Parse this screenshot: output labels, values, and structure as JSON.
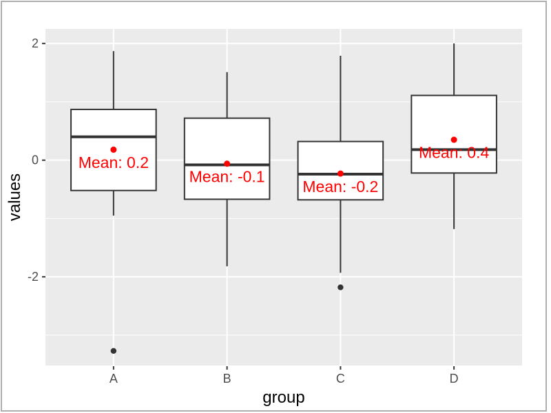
{
  "figure": {
    "kind": "ggplot2-style boxplot screenshot",
    "colors": {
      "page_background": "#ffffff",
      "panel_background": "#ebebeb",
      "gridline": "#ffffff",
      "box_fill": "#ffffff",
      "box_outline": "#333333",
      "median_line": "#333333",
      "outlier_point": "#333333",
      "mean_point": "#ff0000",
      "mean_label_text": "#ff0000",
      "tick_label_text": "#4d4d4d",
      "axis_title_text": "#000000",
      "screenshot_frame": "#aeaeae"
    }
  },
  "chart_data": {
    "type": "boxplot",
    "title": "",
    "xlabel": "group",
    "ylabel": "values",
    "x_axis": {
      "title": "group",
      "categories": [
        "A",
        "B",
        "C",
        "D"
      ]
    },
    "y_axis": {
      "title": "values",
      "range": [
        -3.52,
        2.25
      ],
      "ticks": [
        {
          "value": 2,
          "label": "2"
        },
        {
          "value": 0,
          "label": "0"
        },
        {
          "value": -2,
          "label": "-2"
        }
      ],
      "minor_gridlines": [
        1,
        -1,
        -3
      ],
      "grid": "major-and-minor"
    },
    "legend": "none",
    "mean_label_offset": -0.22,
    "series": [
      {
        "group": "A",
        "whisker_low": -0.95,
        "q1": -0.52,
        "median": 0.4,
        "q3": 0.87,
        "whisker_high": 1.87,
        "mean": 0.18,
        "mean_label": "Mean: 0.2",
        "outliers": [
          -3.27
        ]
      },
      {
        "group": "B",
        "whisker_low": -1.82,
        "q1": -0.67,
        "median": -0.08,
        "q3": 0.72,
        "whisker_high": 1.51,
        "mean": -0.06,
        "mean_label": "Mean: -0.1",
        "outliers": []
      },
      {
        "group": "C",
        "whisker_low": -1.93,
        "q1": -0.68,
        "median": -0.24,
        "q3": 0.32,
        "whisker_high": 1.79,
        "mean": -0.23,
        "mean_label": "Mean: -0.2",
        "outliers": [
          -2.18
        ]
      },
      {
        "group": "D",
        "whisker_low": -1.18,
        "q1": -0.22,
        "median": 0.18,
        "q3": 1.11,
        "whisker_high": 2.0,
        "mean": 0.35,
        "mean_label": "Mean: 0.4",
        "outliers": []
      }
    ]
  }
}
